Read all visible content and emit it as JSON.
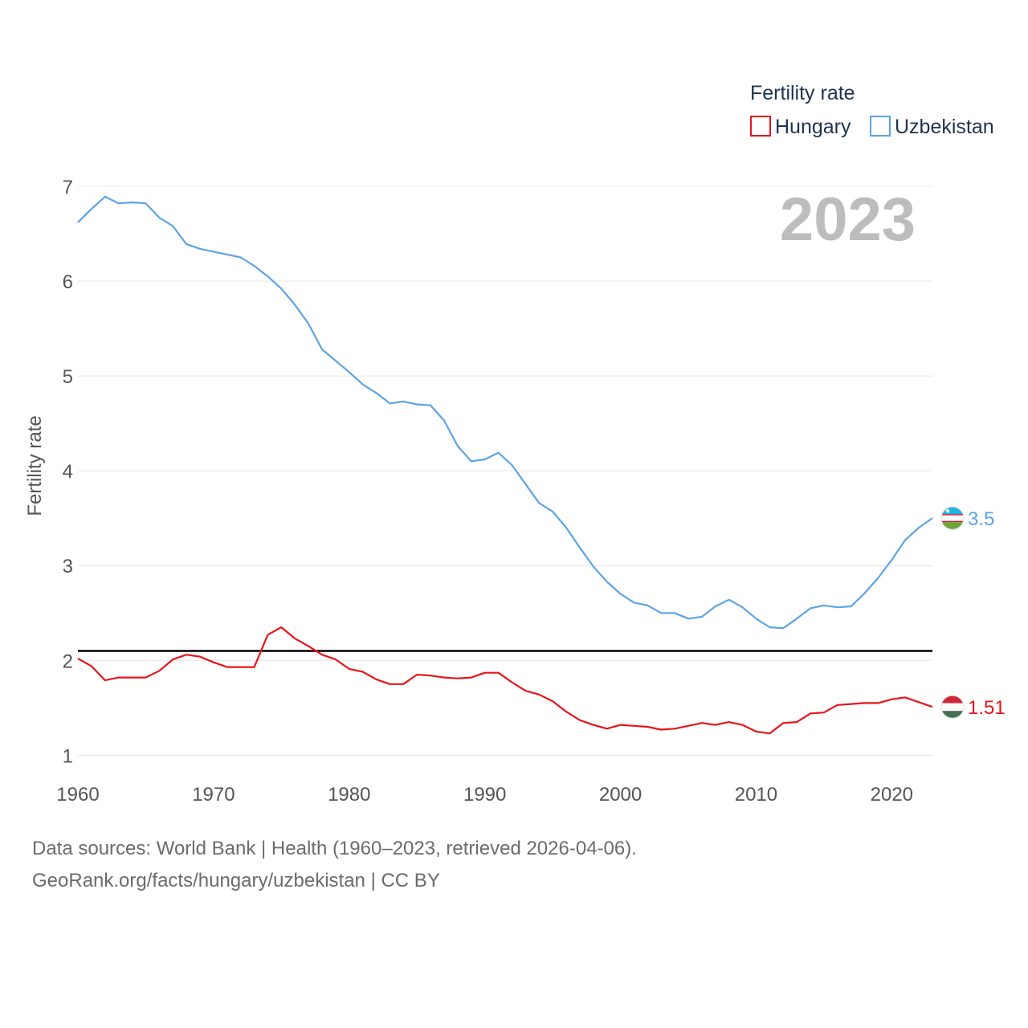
{
  "legend": {
    "title": "Fertility rate",
    "entries": [
      "Hungary",
      "Uzbekistan"
    ]
  },
  "year_label": "2023",
  "source_line1": "Data sources: World Bank | Health (1960–2023, retrieved 2026-04-06).",
  "source_line2": "GeoRank.org/facts/hungary/uzbekistan | CC BY",
  "colors": {
    "hungary": "#e8141b",
    "uzbekistan": "#5ba4e6",
    "reference": "#000000",
    "grid": "#e6e6e6"
  },
  "chart_data": {
    "type": "line",
    "title": "",
    "xlabel": "",
    "ylabel": "Fertility rate",
    "xlim": [
      1960,
      2023
    ],
    "ylim": [
      0.8,
      7.05
    ],
    "x_ticks": [
      1960,
      1970,
      1980,
      1990,
      2000,
      2010,
      2020
    ],
    "y_ticks": [
      1,
      2,
      3,
      4,
      5,
      6,
      7
    ],
    "reference_line": 2.1,
    "x": [
      1960,
      1961,
      1962,
      1963,
      1964,
      1965,
      1966,
      1967,
      1968,
      1969,
      1970,
      1971,
      1972,
      1973,
      1974,
      1975,
      1976,
      1977,
      1978,
      1979,
      1980,
      1981,
      1982,
      1983,
      1984,
      1985,
      1986,
      1987,
      1988,
      1989,
      1990,
      1991,
      1992,
      1993,
      1994,
      1995,
      1996,
      1997,
      1998,
      1999,
      2000,
      2001,
      2002,
      2003,
      2004,
      2005,
      2006,
      2007,
      2008,
      2009,
      2010,
      2011,
      2012,
      2013,
      2014,
      2015,
      2016,
      2017,
      2018,
      2019,
      2020,
      2021,
      2022,
      2023
    ],
    "series": [
      {
        "name": "Hungary",
        "end_label": "1.51",
        "values": [
          2.02,
          1.94,
          1.79,
          1.82,
          1.82,
          1.82,
          1.89,
          2.01,
          2.06,
          2.04,
          1.98,
          1.93,
          1.93,
          1.93,
          2.27,
          2.35,
          2.23,
          2.15,
          2.06,
          2.01,
          1.91,
          1.88,
          1.8,
          1.75,
          1.75,
          1.85,
          1.84,
          1.82,
          1.81,
          1.82,
          1.87,
          1.87,
          1.77,
          1.68,
          1.64,
          1.57,
          1.46,
          1.37,
          1.32,
          1.28,
          1.32,
          1.31,
          1.3,
          1.27,
          1.28,
          1.31,
          1.34,
          1.32,
          1.35,
          1.32,
          1.25,
          1.23,
          1.34,
          1.35,
          1.44,
          1.45,
          1.53,
          1.54,
          1.55,
          1.55,
          1.59,
          1.61,
          1.56,
          1.51
        ]
      },
      {
        "name": "Uzbekistan",
        "end_label": "3.5",
        "values": [
          6.62,
          6.76,
          6.89,
          6.82,
          6.83,
          6.82,
          6.67,
          6.58,
          6.39,
          6.34,
          6.31,
          6.28,
          6.25,
          6.16,
          6.05,
          5.92,
          5.75,
          5.55,
          5.28,
          5.16,
          5.04,
          4.91,
          4.82,
          4.71,
          4.73,
          4.7,
          4.69,
          4.53,
          4.26,
          4.1,
          4.12,
          4.19,
          4.06,
          3.86,
          3.66,
          3.57,
          3.4,
          3.19,
          2.99,
          2.83,
          2.7,
          2.61,
          2.58,
          2.5,
          2.5,
          2.44,
          2.46,
          2.57,
          2.64,
          2.56,
          2.44,
          2.35,
          2.34,
          2.44,
          2.55,
          2.58,
          2.56,
          2.57,
          2.71,
          2.87,
          3.06,
          3.27,
          3.4,
          3.5
        ]
      }
    ]
  }
}
